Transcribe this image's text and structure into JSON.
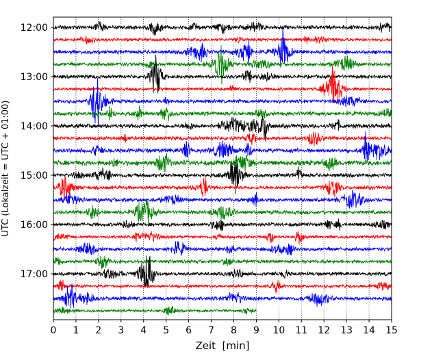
{
  "chart_data": {
    "type": "line",
    "title": "",
    "xlabel": "Zeit  [min]",
    "ylabel": "UTC (Lokalzeit = UTC + 01:00)",
    "x_ticks": [
      "0",
      "1",
      "2",
      "3",
      "4",
      "5",
      "6",
      "7",
      "8",
      "9",
      "10",
      "11",
      "12",
      "13",
      "14",
      "15"
    ],
    "xlim": [
      0,
      15
    ],
    "y_ticks": [
      "12:00",
      "13:00",
      "14:00",
      "15:00",
      "16:00",
      "17:00"
    ],
    "grid": "vertical dotted",
    "legend": "none",
    "trace_colors": [
      "#000000",
      "#ff0000",
      "#0000ff",
      "#008000"
    ],
    "traces": [
      {
        "start": "12:00",
        "color": "#000000",
        "end_min": 15,
        "amplitude": 3.2
      },
      {
        "start": "12:15",
        "color": "#ff0000",
        "end_min": 15,
        "amplitude": 2.6
      },
      {
        "start": "12:30",
        "color": "#0000ff",
        "end_min": 15,
        "amplitude": 3.2
      },
      {
        "start": "12:45",
        "color": "#008000",
        "end_min": 15,
        "amplitude": 3.0
      },
      {
        "start": "13:00",
        "color": "#000000",
        "end_min": 15,
        "amplitude": 3.0
      },
      {
        "start": "13:15",
        "color": "#ff0000",
        "end_min": 15,
        "amplitude": 2.6
      },
      {
        "start": "13:30",
        "color": "#0000ff",
        "end_min": 15,
        "amplitude": 3.0
      },
      {
        "start": "13:45",
        "color": "#008000",
        "end_min": 15,
        "amplitude": 3.4
      },
      {
        "start": "14:00",
        "color": "#000000",
        "end_min": 15,
        "amplitude": 3.6
      },
      {
        "start": "14:15",
        "color": "#ff0000",
        "end_min": 15,
        "amplitude": 3.0
      },
      {
        "start": "14:30",
        "color": "#0000ff",
        "end_min": 15,
        "amplitude": 3.6
      },
      {
        "start": "14:45",
        "color": "#008000",
        "end_min": 15,
        "amplitude": 4.2
      },
      {
        "start": "15:00",
        "color": "#000000",
        "end_min": 15,
        "amplitude": 3.2
      },
      {
        "start": "15:15",
        "color": "#ff0000",
        "end_min": 15,
        "amplitude": 3.0
      },
      {
        "start": "15:30",
        "color": "#0000ff",
        "end_min": 15,
        "amplitude": 3.4
      },
      {
        "start": "15:45",
        "color": "#008000",
        "end_min": 15,
        "amplitude": 3.0
      },
      {
        "start": "16:00",
        "color": "#000000",
        "end_min": 15,
        "amplitude": 3.0
      },
      {
        "start": "16:15",
        "color": "#ff0000",
        "end_min": 15,
        "amplitude": 2.6
      },
      {
        "start": "16:30",
        "color": "#0000ff",
        "end_min": 15,
        "amplitude": 3.0
      },
      {
        "start": "16:45",
        "color": "#008000",
        "end_min": 15,
        "amplitude": 3.0
      },
      {
        "start": "17:00",
        "color": "#000000",
        "end_min": 15,
        "amplitude": 3.0
      },
      {
        "start": "17:15",
        "color": "#ff0000",
        "end_min": 15,
        "amplitude": 2.6
      },
      {
        "start": "17:30",
        "color": "#0000ff",
        "end_min": 15,
        "amplitude": 3.2
      },
      {
        "start": "17:45",
        "color": "#008000",
        "end_min": 9,
        "amplitude": 2.2
      }
    ]
  }
}
